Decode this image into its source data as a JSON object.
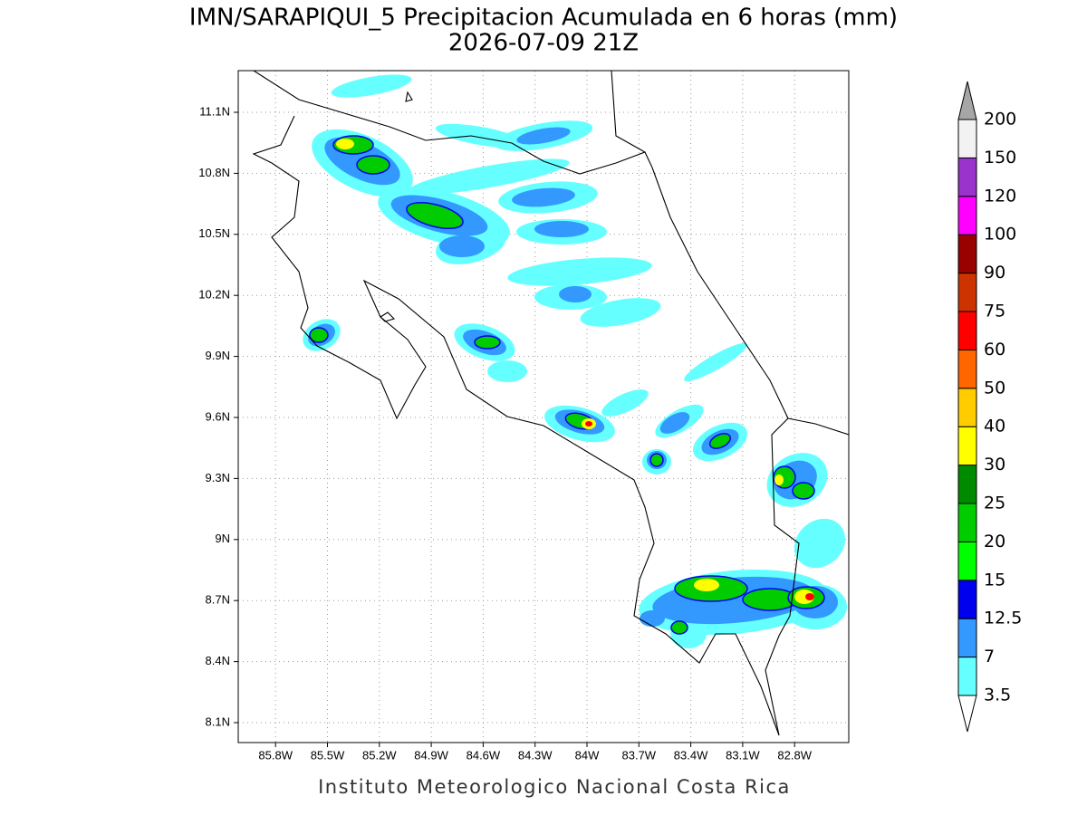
{
  "title": "IMN/SARAPIQUI_5 Precipitacion Acumulada en 6 horas (mm)",
  "subtitle": "2026-07-09 21Z",
  "map": {
    "lon_ticks": [
      {
        "value": -85.8,
        "label": "85.8W"
      },
      {
        "value": -85.5,
        "label": "85.5W"
      },
      {
        "value": -85.2,
        "label": "85.2W"
      },
      {
        "value": -84.9,
        "label": "84.9W"
      },
      {
        "value": -84.6,
        "label": "84.6W"
      },
      {
        "value": -84.3,
        "label": "84.3W"
      },
      {
        "value": -84.0,
        "label": "84W"
      },
      {
        "value": -83.7,
        "label": "83.7W"
      },
      {
        "value": -83.4,
        "label": "83.4W"
      },
      {
        "value": -83.1,
        "label": "83.1W"
      },
      {
        "value": -82.8,
        "label": "82.8W"
      }
    ],
    "lat_ticks": [
      {
        "value": 11.1,
        "label": "11.1N"
      },
      {
        "value": 10.8,
        "label": "10.8N"
      },
      {
        "value": 10.5,
        "label": "10.5N"
      },
      {
        "value": 10.2,
        "label": "10.2N"
      },
      {
        "value": 9.9,
        "label": "9.9N"
      },
      {
        "value": 9.6,
        "label": "9.6N"
      },
      {
        "value": 9.3,
        "label": "9.3N"
      },
      {
        "value": 9.0,
        "label": "9N"
      },
      {
        "value": 8.7,
        "label": "8.7N"
      },
      {
        "value": 8.4,
        "label": "8.4N"
      },
      {
        "value": 8.1,
        "label": "8.1N"
      }
    ],
    "grid": true
  },
  "colorbar": {
    "levels": [
      3.5,
      7,
      12.5,
      15,
      20,
      25,
      30,
      40,
      50,
      60,
      75,
      90,
      100,
      120,
      150,
      200
    ],
    "colors": [
      "#66ffff",
      "#3399ff",
      "#0000ee",
      "#00ff00",
      "#00cc00",
      "#008a00",
      "#ffff00",
      "#ffcc00",
      "#ff6600",
      "#ff0000",
      "#cc3300",
      "#990000",
      "#ff00ff",
      "#9933cc",
      "#f2f2f2"
    ],
    "under_color": "#ffffff",
    "over_color": "#a6a6a6"
  },
  "footer": "Instituto Meteorologico Nacional Costa Rica"
}
